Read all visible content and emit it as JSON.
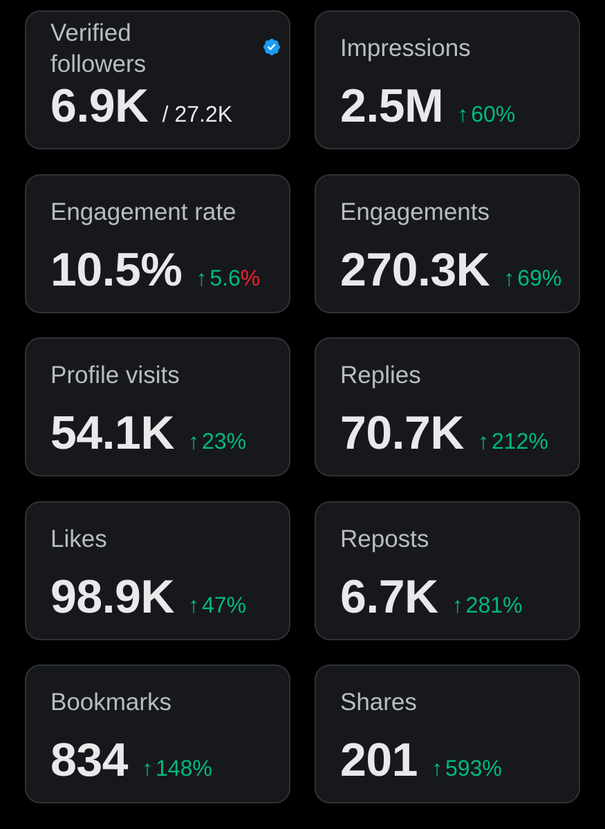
{
  "colors": {
    "background": "#000000",
    "card": "#16181c",
    "card_border": "#2f3336",
    "label": "#b9bcc0",
    "value": "#e7e9ea",
    "positive": "#00ba7c",
    "negative": "#f4212e",
    "verified_badge": "#1d9bf0"
  },
  "metrics": {
    "verified_followers": {
      "label": "Verified followers",
      "value": "6.9K",
      "total": "/ 27.2K",
      "icon": "verified-badge-icon"
    },
    "impressions": {
      "label": "Impressions",
      "value": "2.5M",
      "arrow": "↑",
      "delta": "60%"
    },
    "engagement_rate": {
      "label": "Engagement rate",
      "value": "10.5%",
      "arrow": "↑",
      "delta_number": "5.6",
      "delta_percent": "%"
    },
    "engagements": {
      "label": "Engagements",
      "value": "270.3K",
      "arrow": "↑",
      "delta": "69%"
    },
    "profile_visits": {
      "label": "Profile visits",
      "value": "54.1K",
      "arrow": "↑",
      "delta": "23%"
    },
    "replies": {
      "label": "Replies",
      "value": "70.7K",
      "arrow": "↑",
      "delta": "212%"
    },
    "likes": {
      "label": "Likes",
      "value": "98.9K",
      "arrow": "↑",
      "delta": "47%"
    },
    "reposts": {
      "label": "Reposts",
      "value": "6.7K",
      "arrow": "↑",
      "delta": "281%"
    },
    "bookmarks": {
      "label": "Bookmarks",
      "value": "834",
      "arrow": "↑",
      "delta": "148%"
    },
    "shares": {
      "label": "Shares",
      "value": "201",
      "arrow": "↑",
      "delta": "593%"
    }
  }
}
